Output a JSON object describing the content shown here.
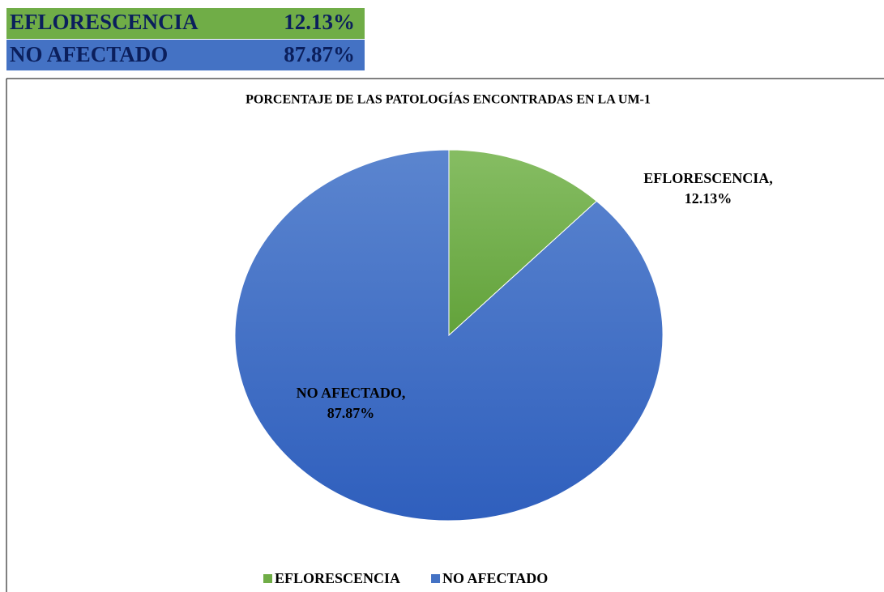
{
  "table": {
    "rows": [
      [
        "EFLORESCENCIA",
        "12.13%"
      ],
      [
        "NO AFECTADO",
        "87.87%"
      ]
    ]
  },
  "chart_data": {
    "type": "pie",
    "title": "PORCENTAJE  DE LAS PATOLOGÍAS ENCONTRADAS  EN LA UM-1",
    "categories": [
      "EFLORESCENCIA",
      "NO AFECTADO"
    ],
    "values": [
      12.13,
      87.87
    ],
    "value_labels": [
      [
        "EFLORESCENCIA,",
        "12.13%"
      ],
      [
        "NO AFECTADO,",
        "87.87%"
      ]
    ],
    "colors": [
      "#70ad47",
      "#4472c4"
    ],
    "legend": "bottom"
  }
}
